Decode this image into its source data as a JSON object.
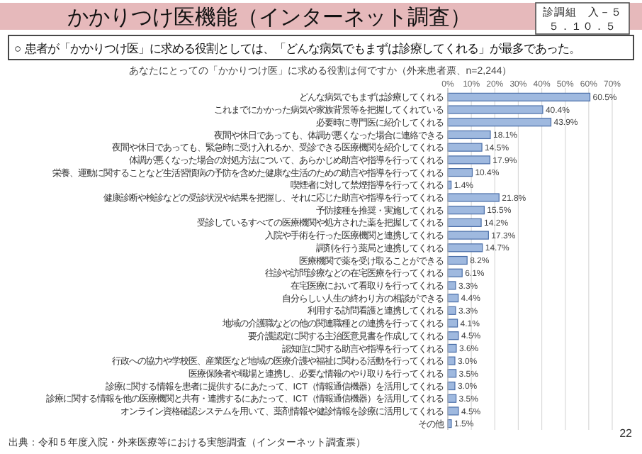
{
  "chart_data": {
    "type": "bar",
    "orientation": "horizontal",
    "title": "かかりつけ医機能（インターネット調査）",
    "subtitle": "○ 患者が「かかりつけ医」に求める役割としては、「どんな病気でもまずは診療してくれる」が最多であった。",
    "annotations": [
      "あなたにとっての「かかりつけ医」に求める役割は何ですか（外来患者票、n=2,244）",
      "診調組　入－５",
      "５．１０．５",
      "出典：令和５年度入院・外来医療等における実態調査（インターネット調査票）",
      "22"
    ],
    "categories": [
      "どんな病気でもまずは診療してくれる",
      "これまでにかかった病気や家族背景等を把握してくれている",
      "必要時に専門医に紹介してくれる",
      "夜間や休日であっても、体調が悪くなった場合に連絡できる",
      "夜間や休日であっても、緊急時に受け入れるか、受診できる医療機関を紹介してくれる",
      "体調が悪くなった場合の対処方法について、あらかじめ助言や指導を行ってくれる",
      "栄養、運動に関することなど生活習慣病の予防を含めた健康な生活のための助言や指導を行ってくれる",
      "喫煙者に対して禁煙指導を行ってくれる",
      "健康診断や検診などの受診状況や結果を把握し、それに応じた助言や指導を行ってくれる",
      "予防接種を推奨・実施してくれる",
      "受診しているすべての医療機関や処方された薬を把握してくれる",
      "入院や手術を行った医療機関と連携してくれる",
      "調剤を行う薬局と連携してくれる",
      "医療機関で薬を受け取ることができる",
      "往診や訪問診療などの在宅医療を行ってくれる",
      "在宅医療において看取りを行ってくれる",
      "自分らしい人生の終わり方の相談ができる",
      "利用する訪問看護と連携してくれる",
      "地域の介護職などの他の関連職種との連携を行ってくれる",
      "要介護認定に関する主治医意見書を作成してくれる",
      "認知症に関する助言や指導を行ってくれる",
      "行政への協力や学校医、産業医など地域の医療介護や福祉に関わる活動を行ってくれる",
      "医療保険者や職場と連携し、必要な情報のやり取りを行ってくれる",
      "診療に関する情報を患者に提供するにあたって、ICT（情報通信機器）を活用してくれる",
      "診療に関する情報を他の医療機関と共有・連携するにあたって、ICT（情報通信機器）を活用してくれる",
      "オンライン資格確認システムを用いて、薬剤情報や健診情報を診療に活用してくれる",
      "その他"
    ],
    "values": [
      60.5,
      40.4,
      43.9,
      18.1,
      14.5,
      17.9,
      10.4,
      1.4,
      21.8,
      15.5,
      14.2,
      17.3,
      14.7,
      8.2,
      6.1,
      3.3,
      4.4,
      3.3,
      4.1,
      4.5,
      3.6,
      3.0,
      3.5,
      3.0,
      3.5,
      4.5,
      1.5
    ],
    "value_labels": [
      "60.5%",
      "40.4%",
      "43.9%",
      "18.1%",
      "14.5%",
      "17.9%",
      "10.4%",
      "1.4%",
      "21.8%",
      "15.5%",
      "14.2%",
      "17.3%",
      "14.7%",
      "8.2%",
      "6.1%",
      "3.3%",
      "4.4%",
      "3.3%",
      "4.1%",
      "4.5%",
      "3.6%",
      "3.0%",
      "3.5%",
      "3.0%",
      "3.5%",
      "4.5%",
      "1.5%"
    ],
    "color": "#9fb9df",
    "xlim": [
      0,
      70
    ],
    "xticks": [
      {
        "value": 0,
        "label": "0%"
      },
      {
        "value": 10,
        "label": "10%"
      },
      {
        "value": 20,
        "label": "20%"
      },
      {
        "value": 30,
        "label": "30%"
      },
      {
        "value": 40,
        "label": "40%"
      },
      {
        "value": 50,
        "label": "50%"
      },
      {
        "value": 60,
        "label": "60%"
      },
      {
        "value": 70,
        "label": "70%"
      }
    ],
    "grid": "x"
  }
}
